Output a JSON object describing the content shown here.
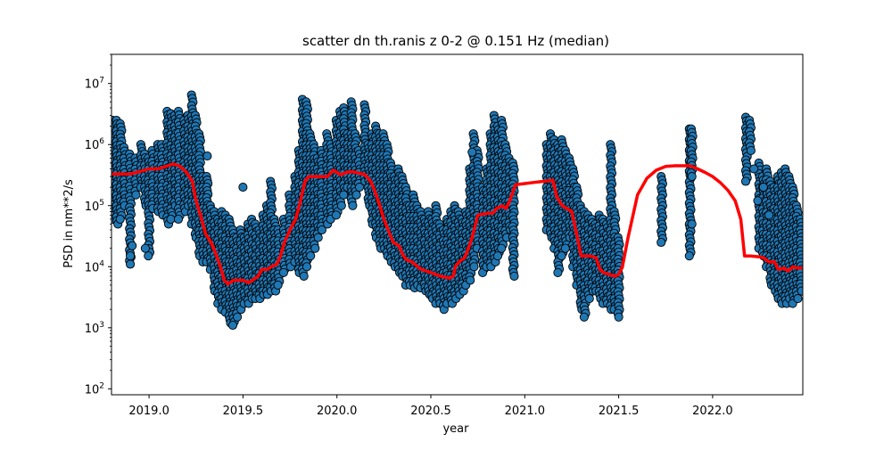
{
  "chart_data": {
    "type": "scatter",
    "title": "scatter dn th.ranis z 0-2 @ 0.151 Hz (median)",
    "xlabel": "year",
    "ylabel": "PSD in nm**2/s",
    "xlim": [
      2018.8,
      2022.48
    ],
    "ylim": [
      80,
      30000000
    ],
    "yscale": "log",
    "grid": false,
    "x_ticks": [
      {
        "value": 2019.0,
        "label": "2019.0"
      },
      {
        "value": 2019.5,
        "label": "2019.5"
      },
      {
        "value": 2020.0,
        "label": "2020.0"
      },
      {
        "value": 2020.5,
        "label": "2020.5"
      },
      {
        "value": 2021.0,
        "label": "2021.0"
      },
      {
        "value": 2021.5,
        "label": "2021.5"
      },
      {
        "value": 2022.0,
        "label": "2022.0"
      }
    ],
    "y_ticks": [
      {
        "value": 100,
        "base": "10",
        "exp": "2"
      },
      {
        "value": 1000,
        "base": "10",
        "exp": "3"
      },
      {
        "value": 10000,
        "base": "10",
        "exp": "4"
      },
      {
        "value": 100000,
        "base": "10",
        "exp": "5"
      },
      {
        "value": 1000000,
        "base": "10",
        "exp": "6"
      },
      {
        "value": 10000000,
        "base": "10",
        "exp": "7"
      }
    ],
    "series": [
      {
        "kind": "scatter",
        "color": "#1f77b4",
        "edge_color": "#000000",
        "column_width": 0.004,
        "columns": [
          [
            2018.81,
            60000,
            2500000
          ],
          [
            2018.83,
            50000,
            2500000
          ],
          [
            2018.85,
            60000,
            2200000
          ],
          [
            2018.87,
            100000,
            900000
          ],
          [
            2018.9,
            11000,
            700000
          ],
          [
            2018.93,
            150000,
            600000
          ],
          [
            2018.96,
            200000,
            1000000
          ],
          [
            2018.98,
            100000,
            700000
          ],
          [
            2019.0,
            15000,
            600000
          ],
          [
            2019.02,
            90000,
            800000
          ],
          [
            2019.05,
            80000,
            1000000
          ],
          [
            2019.07,
            70000,
            1000000
          ],
          [
            2019.1,
            50000,
            3500000
          ],
          [
            2019.12,
            60000,
            3200000
          ],
          [
            2019.14,
            100000,
            3000000
          ],
          [
            2019.16,
            60000,
            3500000
          ],
          [
            2019.19,
            80000,
            2500000
          ],
          [
            2019.21,
            100000,
            3000000
          ],
          [
            2019.23,
            50000,
            6500000
          ],
          [
            2019.25,
            30000,
            3000000
          ],
          [
            2019.27,
            15000,
            1500000
          ],
          [
            2019.29,
            12000,
            300000
          ],
          [
            2019.31,
            12000,
            300000
          ],
          [
            2019.33,
            9000,
            100000
          ],
          [
            2019.35,
            4000,
            80000
          ],
          [
            2019.37,
            2500,
            60000
          ],
          [
            2019.39,
            2000,
            80000
          ],
          [
            2019.41,
            1800,
            70000
          ],
          [
            2019.43,
            1200,
            60000
          ],
          [
            2019.45,
            1100,
            40000
          ],
          [
            2019.47,
            1500,
            30000
          ],
          [
            2019.49,
            2000,
            40000
          ],
          [
            2019.51,
            2500,
            30000
          ],
          [
            2019.53,
            2500,
            50000
          ],
          [
            2019.55,
            3000,
            60000
          ],
          [
            2019.57,
            3000,
            50000
          ],
          [
            2019.59,
            3000,
            40000
          ],
          [
            2019.61,
            3500,
            70000
          ],
          [
            2019.63,
            3500,
            100000
          ],
          [
            2019.65,
            4000,
            250000
          ],
          [
            2019.67,
            4000,
            60000
          ],
          [
            2019.69,
            5000,
            40000
          ],
          [
            2019.72,
            8000,
            60000
          ],
          [
            2019.75,
            10000,
            150000
          ],
          [
            2019.78,
            12000,
            300000
          ],
          [
            2019.8,
            8000,
            800000
          ],
          [
            2019.82,
            7000,
            5500000
          ],
          [
            2019.84,
            10000,
            5000000
          ],
          [
            2019.86,
            15000,
            1500000
          ],
          [
            2019.88,
            20000,
            1000000
          ],
          [
            2019.9,
            30000,
            600000
          ],
          [
            2019.92,
            40000,
            800000
          ],
          [
            2019.95,
            50000,
            1500000
          ],
          [
            2019.97,
            60000,
            1000000
          ],
          [
            2020.0,
            70000,
            2500000
          ],
          [
            2020.02,
            100000,
            3500000
          ],
          [
            2020.04,
            150000,
            4000000
          ],
          [
            2020.06,
            200000,
            1500000
          ],
          [
            2020.08,
            100000,
            5000000
          ],
          [
            2020.1,
            150000,
            1500000
          ],
          [
            2020.12,
            200000,
            800000
          ],
          [
            2020.15,
            250000,
            4500000
          ],
          [
            2020.17,
            100000,
            1000000
          ],
          [
            2020.19,
            50000,
            1500000
          ],
          [
            2020.21,
            30000,
            2000000
          ],
          [
            2020.23,
            20000,
            1500000
          ],
          [
            2020.25,
            20000,
            1500000
          ],
          [
            2020.27,
            15000,
            1000000
          ],
          [
            2020.29,
            12000,
            500000
          ],
          [
            2020.31,
            10000,
            300000
          ],
          [
            2020.33,
            8000,
            400000
          ],
          [
            2020.35,
            7000,
            300000
          ],
          [
            2020.37,
            5000,
            200000
          ],
          [
            2020.39,
            5000,
            100000
          ],
          [
            2020.41,
            4500,
            150000
          ],
          [
            2020.43,
            5000,
            100000
          ],
          [
            2020.45,
            4500,
            80000
          ],
          [
            2020.47,
            4000,
            60000
          ],
          [
            2020.49,
            3500,
            80000
          ],
          [
            2020.51,
            3000,
            60000
          ],
          [
            2020.53,
            2500,
            100000
          ],
          [
            2020.55,
            2500,
            50000
          ],
          [
            2020.57,
            2000,
            40000
          ],
          [
            2020.59,
            2500,
            60000
          ],
          [
            2020.61,
            2500,
            80000
          ],
          [
            2020.63,
            3000,
            100000
          ],
          [
            2020.65,
            3500,
            80000
          ],
          [
            2020.67,
            4000,
            60000
          ],
          [
            2020.69,
            5000,
            80000
          ],
          [
            2020.71,
            6000,
            400000
          ],
          [
            2020.73,
            10000,
            1500000
          ],
          [
            2020.75,
            20000,
            800000
          ],
          [
            2020.78,
            8000,
            200000
          ],
          [
            2020.8,
            10000,
            400000
          ],
          [
            2020.82,
            10000,
            1500000
          ],
          [
            2020.84,
            12000,
            3000000
          ],
          [
            2020.86,
            15000,
            2000000
          ],
          [
            2020.88,
            20000,
            2500000
          ],
          [
            2020.9,
            30000,
            1000000
          ],
          [
            2020.92,
            40000,
            600000
          ],
          [
            2020.94,
            7000,
            500000
          ],
          [
            2021.12,
            40000,
            1000000
          ],
          [
            2021.14,
            30000,
            1500000
          ],
          [
            2021.16,
            20000,
            1200000
          ],
          [
            2021.18,
            8000,
            1000000
          ],
          [
            2021.2,
            15000,
            1200000
          ],
          [
            2021.22,
            20000,
            800000
          ],
          [
            2021.24,
            30000,
            600000
          ],
          [
            2021.26,
            10000,
            400000
          ],
          [
            2021.28,
            5000,
            200000
          ],
          [
            2021.3,
            2000,
            100000
          ],
          [
            2021.32,
            1500,
            80000
          ],
          [
            2021.34,
            3000,
            70000
          ],
          [
            2021.36,
            4000,
            60000
          ],
          [
            2021.38,
            4000,
            50000
          ],
          [
            2021.4,
            3000,
            70000
          ],
          [
            2021.42,
            2500,
            60000
          ],
          [
            2021.44,
            2500,
            50000
          ],
          [
            2021.46,
            2000,
            1000000
          ],
          [
            2021.48,
            2000,
            80000
          ],
          [
            2021.5,
            1500,
            30000
          ],
          [
            2021.73,
            25000,
            300000
          ],
          [
            2021.88,
            15000,
            1800000
          ],
          [
            2021.89,
            300000,
            1800000
          ],
          [
            2022.18,
            250000,
            2800000
          ],
          [
            2022.2,
            800000,
            2500000
          ],
          [
            2022.25,
            20000,
            500000
          ],
          [
            2022.27,
            15000,
            300000
          ],
          [
            2022.29,
            10000,
            400000
          ],
          [
            2022.31,
            5000,
            250000
          ],
          [
            2022.33,
            4000,
            200000
          ],
          [
            2022.35,
            3000,
            300000
          ],
          [
            2022.37,
            2500,
            350000
          ],
          [
            2022.39,
            2500,
            400000
          ],
          [
            2022.41,
            3000,
            300000
          ],
          [
            2022.43,
            2500,
            200000
          ],
          [
            2022.45,
            3000,
            100000
          ],
          [
            2022.47,
            4000,
            60000
          ]
        ],
        "points": [
          [
            2018.9,
            15000
          ],
          [
            2018.91,
            22000
          ],
          [
            2018.98,
            20000
          ],
          [
            2019.31,
            650000
          ],
          [
            2019.5,
            200000
          ],
          [
            2020.72,
            750000
          ],
          [
            2021.89,
            50000
          ],
          [
            2022.22,
            400000
          ],
          [
            2022.24,
            120000
          ],
          [
            2022.27,
            200000
          ],
          [
            2022.3,
            70000
          ]
        ]
      },
      {
        "kind": "line",
        "color": "#ff0000",
        "x": [
          2018.8,
          2018.86,
          2018.9,
          2018.95,
          2019.0,
          2019.05,
          2019.1,
          2019.13,
          2019.16,
          2019.18,
          2019.2,
          2019.23,
          2019.25,
          2019.28,
          2019.3,
          2019.33,
          2019.35,
          2019.38,
          2019.4,
          2019.42,
          2019.45,
          2019.5,
          2019.53,
          2019.55,
          2019.58,
          2019.6,
          2019.63,
          2019.65,
          2019.68,
          2019.7,
          2019.72,
          2019.75,
          2019.78,
          2019.8,
          2019.83,
          2019.85,
          2019.9,
          2019.95,
          2019.98,
          2020.02,
          2020.05,
          2020.08,
          2020.1,
          2020.15,
          2020.18,
          2020.2,
          2020.22,
          2020.25,
          2020.28,
          2020.3,
          2020.33,
          2020.35,
          2020.37,
          2020.4,
          2020.43,
          2020.45,
          2020.5,
          2020.55,
          2020.6,
          2020.62,
          2020.63,
          2020.65,
          2020.68,
          2020.7,
          2020.72,
          2020.75,
          2020.8,
          2020.83,
          2020.85,
          2020.88,
          2020.9,
          2020.92,
          2020.95,
          2021.0,
          2021.05,
          2021.1,
          2021.15,
          2021.17,
          2021.2,
          2021.25,
          2021.28,
          2021.3,
          2021.32,
          2021.35,
          2021.38,
          2021.4,
          2021.42,
          2021.45,
          2021.48,
          2021.5,
          2021.52,
          2021.55,
          2021.6,
          2021.65,
          2021.7,
          2021.75,
          2021.8,
          2021.85,
          2021.88,
          2021.92,
          2021.96,
          2022.0,
          2022.04,
          2022.08,
          2022.12,
          2022.15,
          2022.17,
          2022.2,
          2022.25,
          2022.27,
          2022.3,
          2022.33,
          2022.35,
          2022.38,
          2022.4,
          2022.43,
          2022.45,
          2022.48
        ],
        "y": [
          330000,
          330000,
          330000,
          360000,
          400000,
          400000,
          450000,
          480000,
          450000,
          400000,
          350000,
          250000,
          120000,
          60000,
          35000,
          25000,
          18000,
          10000,
          6000,
          5200,
          6000,
          6000,
          5500,
          6000,
          7000,
          9000,
          9000,
          10000,
          11000,
          15000,
          25000,
          40000,
          60000,
          100000,
          250000,
          300000,
          300000,
          300000,
          380000,
          320000,
          350000,
          360000,
          350000,
          320000,
          250000,
          180000,
          120000,
          60000,
          35000,
          25000,
          22000,
          16000,
          13000,
          12000,
          10000,
          9000,
          8000,
          7000,
          6500,
          7000,
          10000,
          12000,
          14000,
          20000,
          30000,
          70000,
          75000,
          75000,
          90000,
          100000,
          90000,
          120000,
          220000,
          230000,
          240000,
          250000,
          260000,
          140000,
          100000,
          80000,
          30000,
          15000,
          15000,
          15000,
          14000,
          9000,
          8000,
          7500,
          7000,
          7500,
          10000,
          30000,
          150000,
          280000,
          380000,
          440000,
          450000,
          450000,
          450000,
          400000,
          350000,
          300000,
          240000,
          180000,
          120000,
          60000,
          15000,
          15000,
          14500,
          14000,
          12000,
          12000,
          9000,
          9500,
          8500,
          10000,
          9500,
          9500
        ]
      }
    ]
  }
}
